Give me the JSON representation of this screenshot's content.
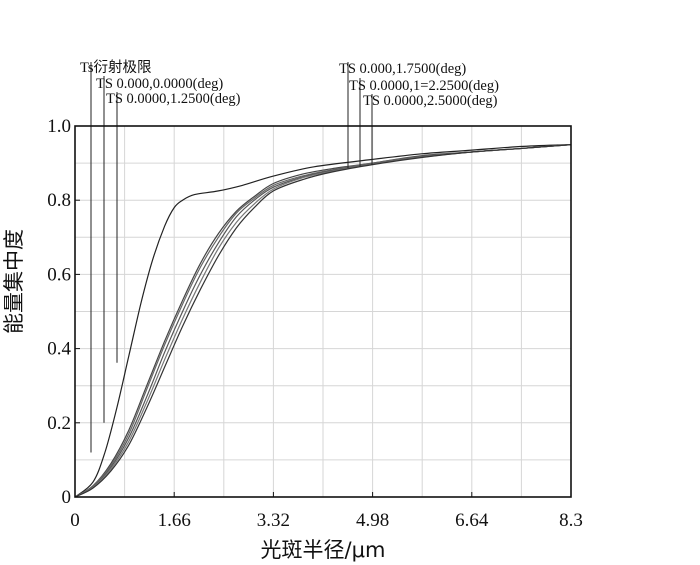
{
  "chart_data": {
    "type": "line",
    "xlabel": "光斑半径/μm",
    "ylabel": "能量集中度",
    "xlim": [
      0,
      8.3
    ],
    "ylim": [
      0,
      1.0
    ],
    "x_ticks": [
      "0",
      "1.66",
      "3.32",
      "4.98",
      "6.64",
      "8.3"
    ],
    "y_ticks": [
      "0",
      "0.2",
      "0.4",
      "0.6",
      "0.8",
      "1.0"
    ],
    "grid": true,
    "series": [
      {
        "name": "Ts衍射极限",
        "color": "#222222",
        "points": [
          [
            0,
            0
          ],
          [
            0.3,
            0.04
          ],
          [
            0.5,
            0.12
          ],
          [
            0.7,
            0.24
          ],
          [
            0.9,
            0.38
          ],
          [
            1.1,
            0.52
          ],
          [
            1.3,
            0.64
          ],
          [
            1.5,
            0.73
          ],
          [
            1.66,
            0.78
          ],
          [
            1.8,
            0.8
          ],
          [
            2.0,
            0.815
          ],
          [
            2.4,
            0.825
          ],
          [
            2.8,
            0.84
          ],
          [
            3.32,
            0.865
          ],
          [
            4.0,
            0.89
          ],
          [
            4.98,
            0.91
          ],
          [
            5.8,
            0.925
          ],
          [
            6.64,
            0.935
          ],
          [
            7.5,
            0.945
          ],
          [
            8.3,
            0.95
          ]
        ]
      },
      {
        "name": "TS 0.000,0.0000(deg)",
        "color": "#444444",
        "points": [
          [
            0,
            0
          ],
          [
            0.3,
            0.03
          ],
          [
            0.6,
            0.09
          ],
          [
            0.9,
            0.18
          ],
          [
            1.2,
            0.3
          ],
          [
            1.5,
            0.42
          ],
          [
            1.8,
            0.53
          ],
          [
            2.1,
            0.63
          ],
          [
            2.4,
            0.71
          ],
          [
            2.7,
            0.77
          ],
          [
            3.0,
            0.81
          ],
          [
            3.32,
            0.845
          ],
          [
            3.8,
            0.87
          ],
          [
            4.3,
            0.885
          ],
          [
            4.98,
            0.9
          ],
          [
            5.8,
            0.92
          ],
          [
            6.64,
            0.93
          ],
          [
            7.5,
            0.94
          ],
          [
            8.3,
            0.95
          ]
        ]
      },
      {
        "name": "TS 0.0000,1.2500(deg)",
        "color": "#666666",
        "points": [
          [
            0,
            0
          ],
          [
            0.3,
            0.03
          ],
          [
            0.6,
            0.085
          ],
          [
            0.9,
            0.17
          ],
          [
            1.2,
            0.29
          ],
          [
            1.5,
            0.41
          ],
          [
            1.8,
            0.52
          ],
          [
            2.1,
            0.62
          ],
          [
            2.4,
            0.7
          ],
          [
            2.7,
            0.765
          ],
          [
            3.0,
            0.805
          ],
          [
            3.32,
            0.84
          ],
          [
            3.8,
            0.865
          ],
          [
            4.3,
            0.882
          ],
          [
            4.98,
            0.9
          ],
          [
            5.8,
            0.918
          ],
          [
            6.64,
            0.93
          ],
          [
            7.5,
            0.94
          ],
          [
            8.3,
            0.95
          ]
        ]
      },
      {
        "name": "TS 0.000,1.7500(deg)",
        "color": "#555555",
        "points": [
          [
            0,
            0
          ],
          [
            0.3,
            0.028
          ],
          [
            0.6,
            0.08
          ],
          [
            0.9,
            0.16
          ],
          [
            1.2,
            0.27
          ],
          [
            1.5,
            0.39
          ],
          [
            1.8,
            0.5
          ],
          [
            2.1,
            0.6
          ],
          [
            2.4,
            0.685
          ],
          [
            2.7,
            0.755
          ],
          [
            3.0,
            0.8
          ],
          [
            3.32,
            0.835
          ],
          [
            3.8,
            0.862
          ],
          [
            4.3,
            0.88
          ],
          [
            4.98,
            0.898
          ],
          [
            5.8,
            0.917
          ],
          [
            6.64,
            0.93
          ],
          [
            7.5,
            0.94
          ],
          [
            8.3,
            0.95
          ]
        ]
      },
      {
        "name": "TS 0.0000,1=2.2500(deg)",
        "color": "#777777",
        "points": [
          [
            0,
            0
          ],
          [
            0.3,
            0.026
          ],
          [
            0.6,
            0.075
          ],
          [
            0.9,
            0.15
          ],
          [
            1.2,
            0.255
          ],
          [
            1.5,
            0.37
          ],
          [
            1.8,
            0.48
          ],
          [
            2.1,
            0.58
          ],
          [
            2.4,
            0.67
          ],
          [
            2.7,
            0.74
          ],
          [
            3.0,
            0.79
          ],
          [
            3.32,
            0.83
          ],
          [
            3.8,
            0.86
          ],
          [
            4.3,
            0.878
          ],
          [
            4.98,
            0.897
          ],
          [
            5.8,
            0.916
          ],
          [
            6.64,
            0.93
          ],
          [
            7.5,
            0.94
          ],
          [
            8.3,
            0.95
          ]
        ]
      },
      {
        "name": "TS 0.0000,2.5000(deg)",
        "color": "#333333",
        "points": [
          [
            0,
            0
          ],
          [
            0.3,
            0.024
          ],
          [
            0.6,
            0.07
          ],
          [
            0.9,
            0.14
          ],
          [
            1.2,
            0.24
          ],
          [
            1.5,
            0.35
          ],
          [
            1.8,
            0.46
          ],
          [
            2.1,
            0.56
          ],
          [
            2.4,
            0.65
          ],
          [
            2.7,
            0.725
          ],
          [
            3.0,
            0.78
          ],
          [
            3.32,
            0.825
          ],
          [
            3.8,
            0.855
          ],
          [
            4.3,
            0.876
          ],
          [
            4.98,
            0.896
          ],
          [
            5.8,
            0.915
          ],
          [
            6.64,
            0.93
          ],
          [
            7.5,
            0.94
          ],
          [
            8.3,
            0.95
          ]
        ]
      }
    ],
    "annotations": [
      {
        "text": "Ts衍射极限",
        "x": 0.5
      },
      {
        "text": "TS 0.000,0.0000(deg)",
        "x": 0.95
      },
      {
        "text": "TS 0.0000,1.2500(deg)",
        "x": 1.38
      },
      {
        "text": "TS 0.000,1.7500(deg)",
        "x": 4.55
      },
      {
        "text": "TS 0.0000,1=2.2500(deg)",
        "x": 4.75
      },
      {
        "text": "TS 0.0000,2.5000(deg)",
        "x": 4.95
      }
    ]
  }
}
